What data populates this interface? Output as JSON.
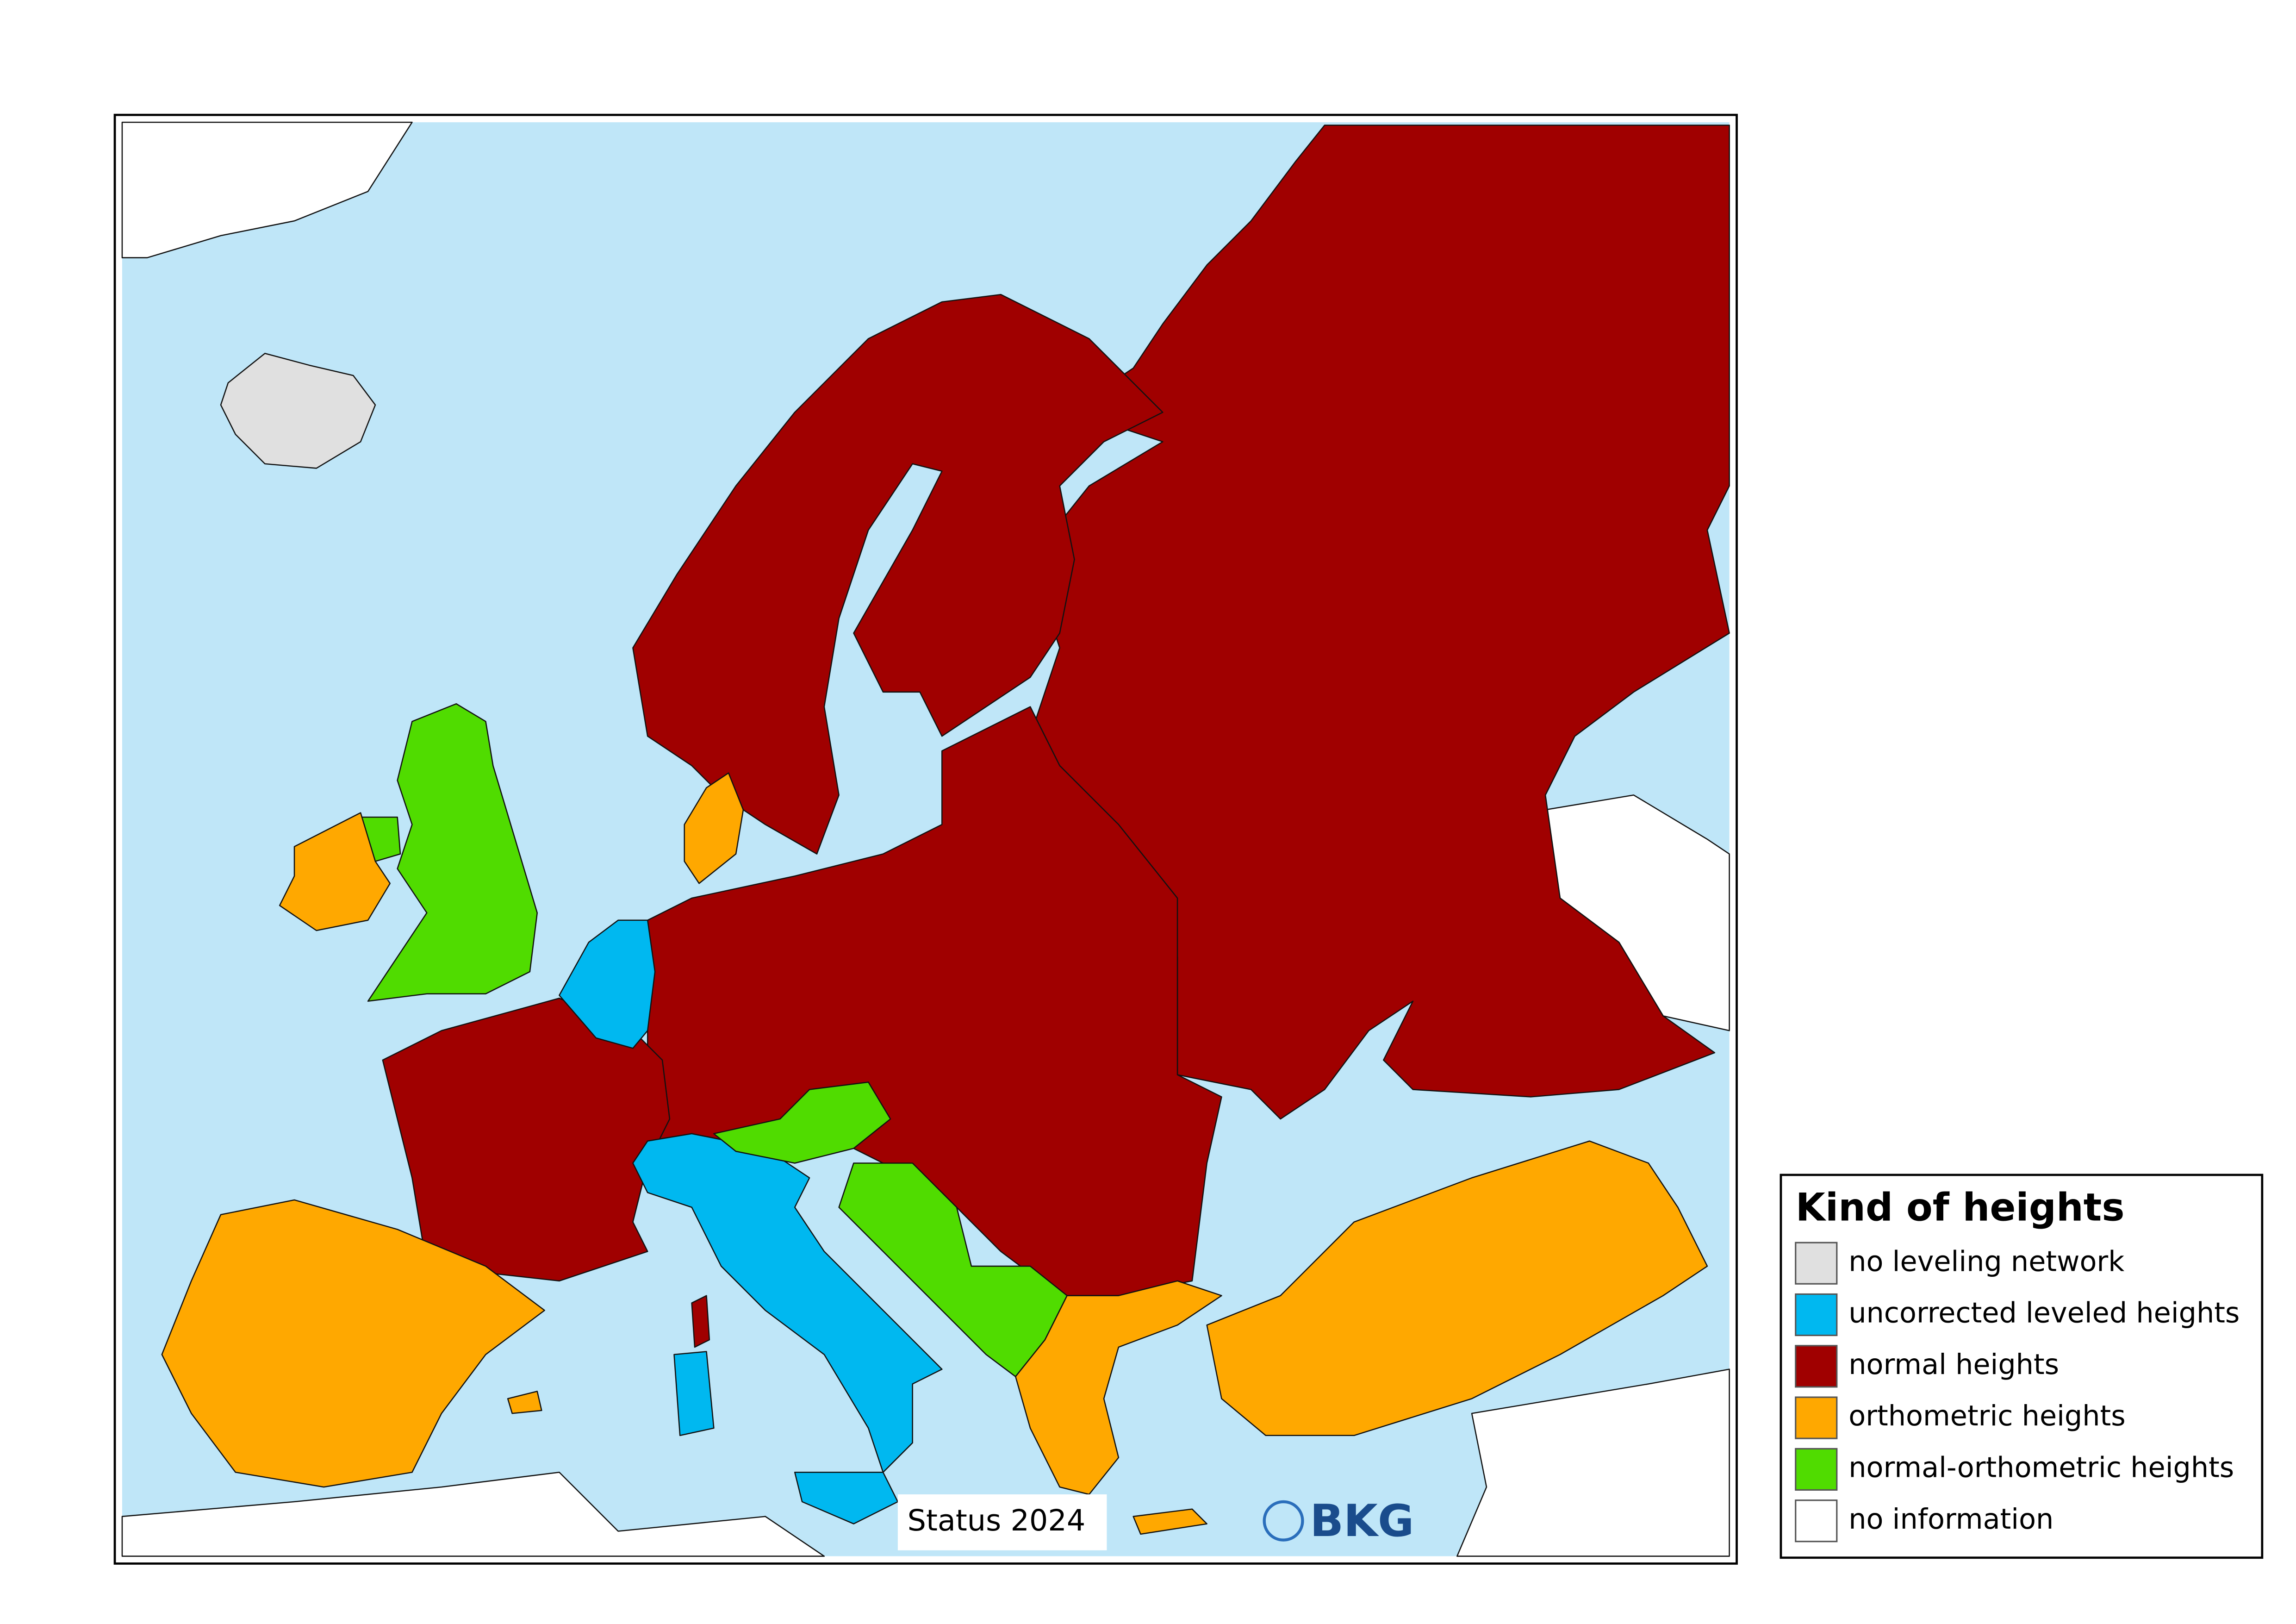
{
  "legend": {
    "title": "Kind of heights",
    "items": [
      {
        "label": "no leveling network",
        "color": "#e0e0e0"
      },
      {
        "label": "uncorrected leveled heights",
        "color": "#00b8f0"
      },
      {
        "label": "normal heights",
        "color": "#a00000"
      },
      {
        "label": "orthometric heights",
        "color": "#ffa800"
      },
      {
        "label": "normal-orthometric heights",
        "color": "#50dc00"
      },
      {
        "label": "no information",
        "color": "#ffffff"
      }
    ]
  },
  "status": "Status 2024",
  "logo": "BKG"
}
